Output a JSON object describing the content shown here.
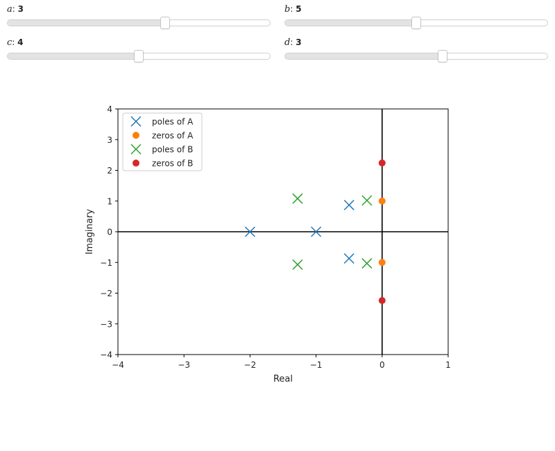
{
  "sliders": [
    {
      "id": "a",
      "label": "a",
      "value": 3,
      "min": 0,
      "max": 5
    },
    {
      "id": "b",
      "label": "b",
      "value": 5,
      "min": 0,
      "max": 10
    },
    {
      "id": "c",
      "label": "c",
      "value": 4,
      "min": 0,
      "max": 8
    },
    {
      "id": "d",
      "label": "d",
      "value": 3,
      "min": 0,
      "max": 5
    }
  ],
  "chart_data": {
    "type": "scatter",
    "xlabel": "Real",
    "ylabel": "Imaginary",
    "xlim": [
      -4,
      1
    ],
    "ylim": [
      -4,
      4
    ],
    "xticks": [
      -4,
      -3,
      -2,
      -1,
      0,
      1
    ],
    "yticks": [
      -4,
      -3,
      -2,
      -1,
      0,
      1,
      2,
      3,
      4
    ],
    "xtick_labels": [
      "−4",
      "−3",
      "−2",
      "−1",
      "0",
      "1"
    ],
    "ytick_labels": [
      "−4",
      "−3",
      "−2",
      "−1",
      "0",
      "1",
      "2",
      "3",
      "4"
    ],
    "grid": false,
    "legend_position": "top-left",
    "series": [
      {
        "name": "poles of A",
        "marker": "x",
        "color": "#1f77b4",
        "points": [
          [
            -2,
            0
          ],
          [
            -1,
            0
          ],
          [
            -0.5,
            0.87
          ],
          [
            -0.5,
            -0.87
          ]
        ]
      },
      {
        "name": "zeros of A",
        "marker": "o",
        "color": "#ff7f0e",
        "points": [
          [
            0,
            1
          ],
          [
            0,
            -1
          ]
        ]
      },
      {
        "name": "poles of B",
        "marker": "x",
        "color": "#2ca02c",
        "points": [
          [
            -1.28,
            1.08
          ],
          [
            -1.28,
            -1.07
          ],
          [
            -0.23,
            1.02
          ],
          [
            -0.23,
            -1.03
          ]
        ]
      },
      {
        "name": "zeros of B",
        "marker": "o",
        "color": "#d62728",
        "points": [
          [
            0,
            2.24
          ],
          [
            0,
            -2.24
          ]
        ]
      }
    ]
  }
}
